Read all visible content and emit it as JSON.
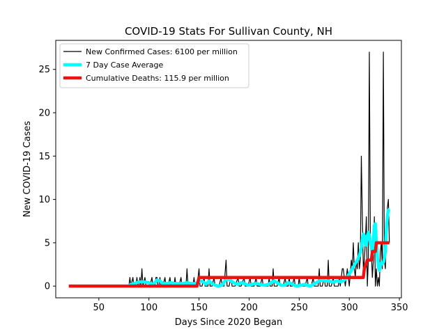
{
  "chart_data": {
    "type": "line",
    "title": "COVID-19 Stats For Sullivan County, NH",
    "xlabel": "Days Since 2020 Began",
    "ylabel": "New COVID-19 Cases",
    "xlim": [
      7,
      352
    ],
    "ylim": [
      -1.35,
      28.35
    ],
    "xticks": [
      50,
      100,
      150,
      200,
      250,
      300,
      350
    ],
    "yticks": [
      0,
      5,
      10,
      15,
      20,
      25
    ],
    "legend_position": "top-left",
    "grid": false,
    "series": [
      {
        "name": "New Confirmed Cases: 6100 per million",
        "color": "#000000",
        "line_width": 1.2,
        "points": [
          [
            80,
            0
          ],
          [
            81,
            1
          ],
          [
            82,
            0
          ],
          [
            84,
            1
          ],
          [
            85,
            0
          ],
          [
            87,
            0
          ],
          [
            88,
            1
          ],
          [
            89,
            0
          ],
          [
            90,
            0
          ],
          [
            91,
            1
          ],
          [
            92,
            0
          ],
          [
            93,
            2
          ],
          [
            94,
            0
          ],
          [
            96,
            1
          ],
          [
            97,
            0
          ],
          [
            100,
            0
          ],
          [
            101,
            0
          ],
          [
            103,
            1
          ],
          [
            104,
            0
          ],
          [
            106,
            0
          ],
          [
            107,
            1
          ],
          [
            108,
            1
          ],
          [
            109,
            0
          ],
          [
            110,
            0
          ],
          [
            111,
            1
          ],
          [
            112,
            0
          ],
          [
            114,
            0
          ],
          [
            116,
            1
          ],
          [
            117,
            0
          ],
          [
            119,
            0
          ],
          [
            121,
            1
          ],
          [
            122,
            0
          ],
          [
            125,
            0
          ],
          [
            126,
            1
          ],
          [
            127,
            0
          ],
          [
            130,
            0
          ],
          [
            132,
            1
          ],
          [
            133,
            0
          ],
          [
            137,
            0
          ],
          [
            138,
            2
          ],
          [
            139,
            0
          ],
          [
            144,
            0
          ],
          [
            145,
            1
          ],
          [
            146,
            0
          ],
          [
            148,
            0
          ],
          [
            150,
            2
          ],
          [
            151,
            0
          ],
          [
            153,
            0
          ],
          [
            155,
            1
          ],
          [
            156,
            0
          ],
          [
            159,
            0
          ],
          [
            160,
            2
          ],
          [
            161,
            0
          ],
          [
            163,
            0
          ],
          [
            165,
            1
          ],
          [
            166,
            0
          ],
          [
            170,
            0
          ],
          [
            172,
            1
          ],
          [
            173,
            0
          ],
          [
            175,
            0
          ],
          [
            177,
            3
          ],
          [
            178,
            0
          ],
          [
            180,
            0
          ],
          [
            182,
            1
          ],
          [
            183,
            0
          ],
          [
            186,
            0
          ],
          [
            189,
            1
          ],
          [
            190,
            0
          ],
          [
            192,
            0
          ],
          [
            195,
            1
          ],
          [
            196,
            0
          ],
          [
            199,
            0
          ],
          [
            201,
            1
          ],
          [
            202,
            0
          ],
          [
            205,
            0
          ],
          [
            207,
            1
          ],
          [
            208,
            0
          ],
          [
            211,
            0
          ],
          [
            213,
            1
          ],
          [
            214,
            0
          ],
          [
            219,
            0
          ],
          [
            220,
            1
          ],
          [
            221,
            0
          ],
          [
            223,
            0
          ],
          [
            224,
            2
          ],
          [
            225,
            0
          ],
          [
            228,
            0
          ],
          [
            230,
            1
          ],
          [
            231,
            0
          ],
          [
            234,
            0
          ],
          [
            236,
            1
          ],
          [
            237,
            0
          ],
          [
            239,
            0
          ],
          [
            240,
            1
          ],
          [
            241,
            0
          ],
          [
            243,
            0
          ],
          [
            245,
            1
          ],
          [
            246,
            0
          ],
          [
            249,
            0
          ],
          [
            250,
            1
          ],
          [
            251,
            0
          ],
          [
            256,
            0
          ],
          [
            258,
            1
          ],
          [
            259,
            0
          ],
          [
            262,
            0
          ],
          [
            264,
            1
          ],
          [
            265,
            0
          ],
          [
            269,
            0
          ],
          [
            270,
            2
          ],
          [
            271,
            0
          ],
          [
            273,
            0
          ],
          [
            275,
            1
          ],
          [
            276,
            0
          ],
          [
            278,
            0
          ],
          [
            279,
            3
          ],
          [
            280,
            0
          ],
          [
            282,
            0
          ],
          [
            284,
            1
          ],
          [
            285,
            0
          ],
          [
            289,
            0
          ],
          [
            290,
            1
          ],
          [
            291,
            0
          ],
          [
            293,
            2
          ],
          [
            294,
            2
          ],
          [
            295,
            1
          ],
          [
            296,
            0
          ],
          [
            298,
            2
          ],
          [
            299,
            1
          ],
          [
            300,
            0
          ],
          [
            302,
            3
          ],
          [
            303,
            2
          ],
          [
            304,
            5
          ],
          [
            305,
            2
          ],
          [
            306,
            1
          ],
          [
            307,
            3
          ],
          [
            308,
            2
          ],
          [
            309,
            5
          ],
          [
            310,
            2
          ],
          [
            311,
            3
          ],
          [
            312,
            15
          ],
          [
            313,
            8
          ],
          [
            314,
            2
          ],
          [
            315,
            3
          ],
          [
            316,
            5
          ],
          [
            317,
            8
          ],
          [
            318,
            0
          ],
          [
            319,
            3
          ],
          [
            320,
            27
          ],
          [
            321,
            6
          ],
          [
            322,
            4
          ],
          [
            323,
            1
          ],
          [
            324,
            3
          ],
          [
            325,
            8
          ],
          [
            326,
            0
          ],
          [
            327,
            2
          ],
          [
            328,
            0
          ],
          [
            329,
            1
          ],
          [
            330,
            0
          ],
          [
            331,
            4
          ],
          [
            332,
            5
          ],
          [
            333,
            2
          ],
          [
            334,
            27
          ],
          [
            335,
            3
          ],
          [
            336,
            2
          ],
          [
            337,
            6
          ],
          [
            338,
            9
          ],
          [
            339,
            10
          ],
          [
            340,
            5
          ]
        ]
      },
      {
        "name": "7 Day Case Average",
        "color": "#00ffff",
        "line_width": 4.5,
        "points": [
          [
            80,
            0.1
          ],
          [
            85,
            0.3
          ],
          [
            90,
            0.5
          ],
          [
            95,
            0.5
          ],
          [
            100,
            0.4
          ],
          [
            103,
            0.2
          ],
          [
            106,
            0.4
          ],
          [
            108,
            0.7
          ],
          [
            111,
            0.6
          ],
          [
            114,
            0.3
          ],
          [
            118,
            0.3
          ],
          [
            122,
            0.4
          ],
          [
            126,
            0.3
          ],
          [
            130,
            0.3
          ],
          [
            134,
            0.3
          ],
          [
            138,
            0.4
          ],
          [
            142,
            0.3
          ],
          [
            146,
            0.3
          ],
          [
            149,
            0.4
          ],
          [
            151,
            0.6
          ],
          [
            154,
            0.5
          ],
          [
            157,
            0.2
          ],
          [
            160,
            0.6
          ],
          [
            163,
            0.3
          ],
          [
            166,
            0.1
          ],
          [
            169,
            0
          ],
          [
            173,
            0.1
          ],
          [
            176,
            0.6
          ],
          [
            179,
            0.9
          ],
          [
            182,
            0.6
          ],
          [
            186,
            0.3
          ],
          [
            189,
            0.2
          ],
          [
            192,
            0.4
          ],
          [
            195,
            0.3
          ],
          [
            199,
            0.1
          ],
          [
            203,
            0.2
          ],
          [
            207,
            0.3
          ],
          [
            211,
            0.2
          ],
          [
            215,
            0.1
          ],
          [
            219,
            0.2
          ],
          [
            222,
            0.4
          ],
          [
            225,
            0.6
          ],
          [
            228,
            0.4
          ],
          [
            232,
            0.1
          ],
          [
            236,
            0.1
          ],
          [
            239,
            0.4
          ],
          [
            242,
            0.3
          ],
          [
            245,
            0.1
          ],
          [
            248,
            0
          ],
          [
            252,
            0.1
          ],
          [
            255,
            0.2
          ],
          [
            258,
            0.1
          ],
          [
            261,
            0
          ],
          [
            264,
            0.2
          ],
          [
            267,
            0.4
          ],
          [
            270,
            0.6
          ],
          [
            273,
            0.7
          ],
          [
            276,
            0.6
          ],
          [
            279,
            0.6
          ],
          [
            282,
            0.5
          ],
          [
            285,
            0.5
          ],
          [
            288,
            0.6
          ],
          [
            291,
            0.5
          ],
          [
            294,
            0.6
          ],
          [
            297,
            0.9
          ],
          [
            300,
            1.4
          ],
          [
            303,
            2
          ],
          [
            306,
            2.6
          ],
          [
            308,
            3
          ],
          [
            310,
            3.5
          ],
          [
            312,
            4.4
          ],
          [
            313,
            5.4
          ],
          [
            314,
            6
          ],
          [
            315,
            5.8
          ],
          [
            316,
            4.8
          ],
          [
            317,
            4.7
          ],
          [
            318,
            5.7
          ],
          [
            319,
            6.2
          ],
          [
            320,
            5.9
          ],
          [
            321,
            5.1
          ],
          [
            322,
            4.5
          ],
          [
            323,
            3.7
          ],
          [
            324,
            5.1
          ],
          [
            325,
            7
          ],
          [
            326,
            7.2
          ],
          [
            327,
            5
          ],
          [
            328,
            3.5
          ],
          [
            329,
            2.3
          ],
          [
            330,
            1.8
          ],
          [
            331,
            2.2
          ],
          [
            332,
            2.7
          ],
          [
            333,
            2.6
          ],
          [
            334,
            2.7
          ],
          [
            335,
            3.2
          ],
          [
            336,
            4
          ],
          [
            337,
            6.5
          ],
          [
            338,
            8
          ],
          [
            339,
            8.8
          ],
          [
            340,
            8.9
          ]
        ]
      },
      {
        "name": "Cumulative Deaths: 115.9 per million",
        "color": "#ee1111",
        "line_width": 4.5,
        "points": [
          [
            20,
            0
          ],
          [
            148,
            0
          ],
          [
            150,
            1
          ],
          [
            314,
            1
          ],
          [
            315,
            2
          ],
          [
            318,
            3
          ],
          [
            322,
            3
          ],
          [
            323,
            4
          ],
          [
            326,
            4
          ],
          [
            327,
            5
          ],
          [
            340,
            5
          ]
        ]
      }
    ]
  }
}
